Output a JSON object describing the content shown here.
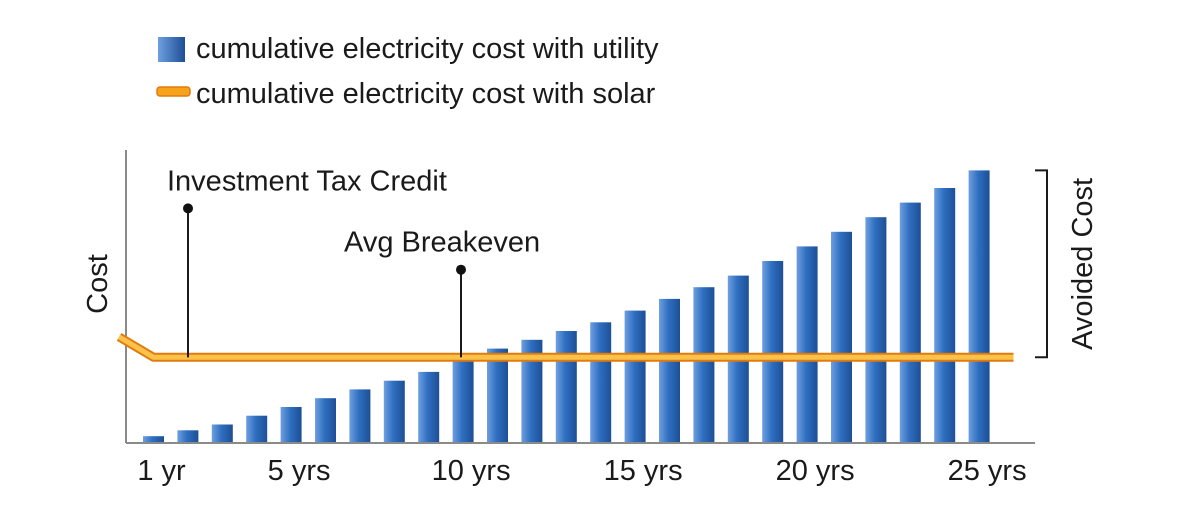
{
  "chart_data": {
    "type": "bar",
    "title": "",
    "xlabel": "",
    "ylabel": "Cost",
    "ylim": [
      0,
      100
    ],
    "legend": "top-left",
    "grid": false,
    "categories": [
      "1",
      "2",
      "3",
      "4",
      "5",
      "6",
      "7",
      "8",
      "9",
      "10",
      "11",
      "12",
      "13",
      "14",
      "15",
      "16",
      "17",
      "18",
      "19",
      "20",
      "21",
      "22",
      "23",
      "24",
      "25"
    ],
    "x_tick_labels": [
      {
        "category": "1",
        "label": "1 yr"
      },
      {
        "category": "5",
        "label": "5 yrs"
      },
      {
        "category": "10",
        "label": "10 yrs"
      },
      {
        "category": "15",
        "label": "15 yrs"
      },
      {
        "category": "20",
        "label": "20 yrs"
      },
      {
        "category": "25",
        "label": "25 yrs"
      }
    ],
    "series": [
      {
        "name": "cumulative electricity cost with utility",
        "kind": "bar",
        "color": "#2f6fc0",
        "values": [
          2,
          4,
          6,
          9,
          12,
          15,
          18,
          21,
          24,
          29,
          32,
          35,
          38,
          41,
          45,
          49,
          53,
          57,
          62,
          67,
          72,
          77,
          82,
          87,
          93
        ]
      },
      {
        "name": "cumulative electricity cost with solar",
        "kind": "line",
        "color": "#f7a21b",
        "points": [
          [
            0,
            36
          ],
          [
            1,
            29
          ],
          [
            26,
            29
          ]
        ]
      }
    ],
    "annotations": [
      {
        "text": "Investment Tax Credit",
        "x": 1,
        "y": 80
      },
      {
        "text": "Avg Breakeven",
        "x": 10,
        "y": 59
      }
    ],
    "bracket": {
      "text": "Avoided Cost",
      "from": 29,
      "to": 93
    }
  }
}
